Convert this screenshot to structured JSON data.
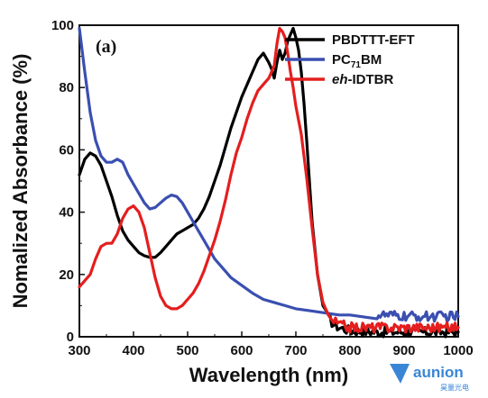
{
  "chart_data": {
    "type": "line",
    "panel_label": "(a)",
    "xlabel": "Wavelength (nm)",
    "ylabel": "Nomalized Absorbance (%)",
    "xlim": [
      300,
      1000
    ],
    "ylim": [
      0,
      100
    ],
    "x_ticks": [
      "300",
      "400",
      "500",
      "600",
      "700",
      "800",
      "900",
      "1000"
    ],
    "y_ticks": [
      "0",
      "20",
      "40",
      "60",
      "80",
      "100"
    ],
    "legend_position": "top-right",
    "series": [
      {
        "name": "PBDTTT-EFT",
        "legend_main": "PBDTTT-EFT",
        "color": "#000000",
        "noise_from": 760,
        "x": [
          300,
          310,
          320,
          330,
          340,
          350,
          360,
          370,
          380,
          390,
          400,
          410,
          420,
          430,
          440,
          450,
          460,
          470,
          480,
          490,
          500,
          510,
          520,
          530,
          540,
          550,
          560,
          570,
          580,
          590,
          600,
          610,
          620,
          630,
          640,
          650,
          655,
          660,
          665,
          670,
          675,
          680,
          685,
          690,
          695,
          700,
          705,
          710,
          715,
          720,
          725,
          730,
          740,
          750,
          760,
          770,
          780,
          790,
          800,
          850,
          900,
          950,
          1000
        ],
        "y": [
          52,
          57,
          59,
          58,
          55,
          50,
          45,
          39,
          34,
          31,
          29,
          27,
          26,
          25.5,
          25.5,
          27,
          29,
          31,
          33,
          34,
          35,
          36,
          38,
          41,
          45,
          50,
          55,
          61,
          67,
          72,
          77,
          81,
          85,
          89,
          91,
          88,
          86,
          83,
          88,
          92,
          89,
          91,
          95,
          97,
          99,
          96,
          92,
          85,
          75,
          63,
          50,
          37,
          20,
          10,
          6,
          4,
          3,
          2.5,
          2,
          1.5,
          1.5,
          1.5,
          1.5
        ]
      },
      {
        "name": "PC71BM",
        "legend_main": "PC",
        "legend_sub": "71",
        "legend_rest": "BM",
        "color": "#3a4fb0",
        "noise_from": 830,
        "x": [
          300,
          310,
          320,
          330,
          340,
          350,
          360,
          370,
          380,
          390,
          400,
          410,
          420,
          430,
          440,
          450,
          460,
          470,
          480,
          490,
          500,
          510,
          520,
          530,
          540,
          550,
          560,
          570,
          580,
          600,
          620,
          640,
          660,
          680,
          700,
          720,
          740,
          760,
          780,
          800,
          850,
          900,
          950,
          1000
        ],
        "y": [
          99,
          85,
          72,
          63,
          58,
          56,
          56,
          57,
          56,
          52,
          49,
          46,
          43,
          41,
          41.5,
          43,
          44.5,
          45.5,
          45,
          43,
          40,
          37,
          34,
          31,
          28,
          25,
          23,
          21,
          19,
          16.5,
          14,
          12,
          11,
          10,
          9,
          8.5,
          8,
          7.5,
          7,
          7,
          7,
          6.5,
          6.5,
          6.5
        ]
      },
      {
        "name": "eh-IDTBR",
        "legend_italic": "eh",
        "legend_rest": "-IDTBR",
        "color": "#e41e1e",
        "noise_from": 770,
        "x": [
          300,
          310,
          320,
          330,
          340,
          350,
          360,
          370,
          380,
          390,
          400,
          410,
          420,
          430,
          440,
          450,
          460,
          470,
          480,
          490,
          500,
          510,
          520,
          530,
          540,
          550,
          560,
          570,
          580,
          590,
          600,
          610,
          620,
          630,
          640,
          650,
          660,
          665,
          670,
          675,
          680,
          685,
          690,
          695,
          700,
          710,
          720,
          730,
          740,
          750,
          760,
          770,
          780,
          800,
          850,
          900,
          950,
          1000
        ],
        "y": [
          16,
          18,
          20,
          25,
          29,
          30,
          30,
          33,
          38,
          41,
          42,
          40,
          35,
          27,
          19,
          13,
          10,
          9,
          9,
          10,
          12,
          14,
          17,
          21,
          26,
          31,
          37,
          44,
          52,
          59,
          64,
          70,
          75,
          79,
          81,
          83,
          87,
          94,
          99,
          98,
          96,
          91,
          85,
          80,
          74,
          65,
          51,
          35,
          20,
          11,
          7,
          5,
          4,
          3,
          3,
          3,
          3,
          3
        ]
      }
    ]
  },
  "watermark": {
    "text": "aunion",
    "subtext": "昊量光电",
    "color": "#3a86d6"
  }
}
